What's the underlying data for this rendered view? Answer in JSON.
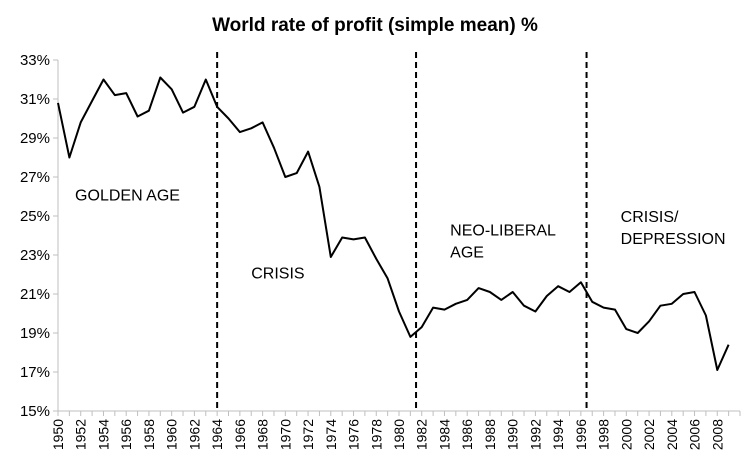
{
  "chart_data": {
    "type": "line",
    "title": "World rate of profit (simple mean) %",
    "xlabel": "",
    "ylabel": "",
    "ylim": [
      15,
      33
    ],
    "xlim": [
      1950,
      2010
    ],
    "y_tick_labels": [
      "15%",
      "17%",
      "19%",
      "21%",
      "23%",
      "25%",
      "27%",
      "29%",
      "31%",
      "33%"
    ],
    "y_tick_values": [
      15,
      17,
      19,
      21,
      23,
      25,
      27,
      29,
      31,
      33
    ],
    "x_tick_labels": [
      "1950",
      "1952",
      "1954",
      "1956",
      "1958",
      "1960",
      "1962",
      "1964",
      "1966",
      "1968",
      "1970",
      "1972",
      "1974",
      "1976",
      "1978",
      "1980",
      "1982",
      "1984",
      "1986",
      "1988",
      "1990",
      "1992",
      "1994",
      "1996",
      "1998",
      "2000",
      "2002",
      "2004",
      "2006",
      "2008"
    ],
    "x_tick_values": [
      1950,
      1952,
      1954,
      1956,
      1958,
      1960,
      1962,
      1964,
      1966,
      1968,
      1970,
      1972,
      1974,
      1976,
      1978,
      1980,
      1982,
      1984,
      1986,
      1988,
      1990,
      1992,
      1994,
      1996,
      1998,
      2000,
      2002,
      2004,
      2006,
      2008
    ],
    "grid": false,
    "series": [
      {
        "color": "#000000",
        "x": [
          1950,
          1951,
          1952,
          1953,
          1954,
          1955,
          1956,
          1957,
          1958,
          1959,
          1960,
          1961,
          1962,
          1963,
          1964,
          1965,
          1966,
          1967,
          1968,
          1969,
          1970,
          1971,
          1972,
          1973,
          1974,
          1975,
          1976,
          1977,
          1978,
          1979,
          1980,
          1981,
          1982,
          1983,
          1984,
          1985,
          1986,
          1987,
          1988,
          1989,
          1990,
          1991,
          1992,
          1993,
          1994,
          1995,
          1996,
          1997,
          1998,
          1999,
          2000,
          2001,
          2002,
          2003,
          2004,
          2005,
          2006,
          2007,
          2008,
          2009
        ],
        "values": [
          30.8,
          28.0,
          29.8,
          30.9,
          32.0,
          31.2,
          31.3,
          30.1,
          30.4,
          32.1,
          31.5,
          30.3,
          30.6,
          32.0,
          30.6,
          30.0,
          29.3,
          29.5,
          29.8,
          28.5,
          27.0,
          27.2,
          28.3,
          26.5,
          22.9,
          23.9,
          23.8,
          23.9,
          22.8,
          21.8,
          20.1,
          18.8,
          19.3,
          20.3,
          20.2,
          20.5,
          20.7,
          21.3,
          21.1,
          20.7,
          21.1,
          20.4,
          20.1,
          20.9,
          21.4,
          21.1,
          21.6,
          20.6,
          20.3,
          20.2,
          19.2,
          19.0,
          19.6,
          20.4,
          20.5,
          21.0,
          21.1,
          19.9,
          17.1,
          18.4
        ]
      }
    ],
    "period_dividers": [
      1964,
      1981.5,
      1996.5
    ],
    "annotations": [
      {
        "lines": [
          "GOLDEN AGE"
        ],
        "x": 1951.5,
        "y": 25.8
      },
      {
        "lines": [
          "CRISIS"
        ],
        "x": 1967,
        "y": 21.8
      },
      {
        "lines": [
          "NEO-LIBERAL",
          "AGE"
        ],
        "x": 1984.5,
        "y": 24.0
      },
      {
        "lines": [
          "CRISIS/",
          "DEPRESSION"
        ],
        "x": 1999.5,
        "y": 24.7
      }
    ]
  }
}
